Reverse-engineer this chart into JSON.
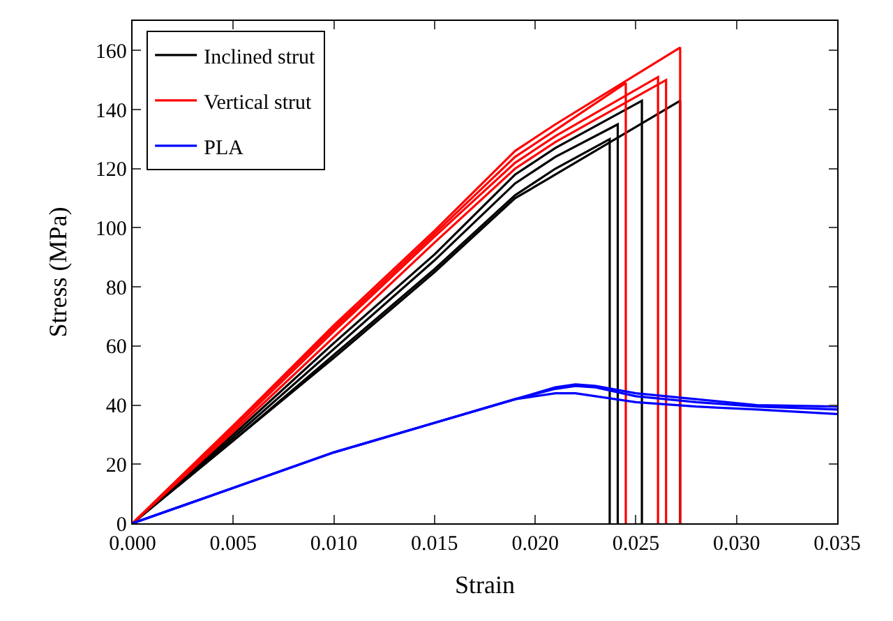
{
  "chart_data": {
    "type": "line",
    "xlabel": "Strain",
    "ylabel": "Stress (MPa)",
    "xlim": [
      0,
      0.035
    ],
    "ylim": [
      0,
      170
    ],
    "xticks": [
      {
        "value": 0,
        "label": "0.000"
      },
      {
        "value": 0.005,
        "label": "0.005"
      },
      {
        "value": 0.01,
        "label": "0.010"
      },
      {
        "value": 0.015,
        "label": "0.015"
      },
      {
        "value": 0.02,
        "label": "0.020"
      },
      {
        "value": 0.025,
        "label": "0.025"
      },
      {
        "value": 0.03,
        "label": "0.030"
      },
      {
        "value": 0.035,
        "label": "0.035"
      }
    ],
    "yticks": [
      0,
      20,
      40,
      60,
      80,
      100,
      120,
      140,
      160
    ],
    "legend": "top left",
    "marker": "none",
    "line_style": "solid",
    "series": [
      {
        "name": "Inclined strut",
        "color": "#000000",
        "x": [
          0,
          0.005,
          0.01,
          0.015,
          0.019,
          0.021,
          0.0237,
          0.0237
        ],
        "values": [
          0,
          28,
          57,
          86,
          111,
          120,
          130,
          0
        ]
      },
      {
        "color": "#000000",
        "x": [
          0,
          0.005,
          0.01,
          0.015,
          0.019,
          0.021,
          0.0241,
          0.0241
        ],
        "values": [
          0,
          29,
          59,
          89,
          115,
          124,
          135,
          0
        ]
      },
      {
        "color": "#000000",
        "x": [
          0,
          0.005,
          0.01,
          0.015,
          0.019,
          0.021,
          0.0253,
          0.0253
        ],
        "values": [
          0,
          30,
          61,
          91,
          118,
          127,
          143,
          0
        ]
      },
      {
        "color": "#000000",
        "x": [
          0,
          0.005,
          0.01,
          0.015,
          0.019,
          0.021,
          0.0272,
          0.0272
        ],
        "values": [
          0,
          28,
          56,
          85,
          110,
          118,
          143,
          0
        ]
      },
      {
        "name": "Vertical strut",
        "color": "#ff0000",
        "x": [
          0,
          0.005,
          0.01,
          0.015,
          0.019,
          0.021,
          0.0245,
          0.0245
        ],
        "values": [
          0,
          33,
          66,
          98,
          124,
          133,
          149,
          0
        ]
      },
      {
        "color": "#ff0000",
        "x": [
          0,
          0.005,
          0.01,
          0.015,
          0.019,
          0.021,
          0.0261,
          0.0261
        ],
        "values": [
          0,
          32,
          65,
          97,
          122,
          131,
          151,
          0
        ]
      },
      {
        "color": "#ff0000",
        "x": [
          0,
          0.005,
          0.01,
          0.015,
          0.019,
          0.021,
          0.0265,
          0.0265
        ],
        "values": [
          0,
          31,
          63,
          95,
          120,
          129,
          150,
          0
        ]
      },
      {
        "color": "#ff0000",
        "x": [
          0,
          0.005,
          0.01,
          0.015,
          0.019,
          0.021,
          0.0272,
          0.0272
        ],
        "values": [
          0,
          33,
          67,
          99,
          126,
          135,
          161,
          0
        ]
      },
      {
        "name": "PLA",
        "color": "#0000ff",
        "x": [
          0,
          0.005,
          0.01,
          0.015,
          0.019,
          0.021,
          0.022,
          0.023,
          0.025,
          0.028,
          0.031,
          0.035
        ],
        "values": [
          0,
          12,
          24,
          34,
          42,
          46,
          47,
          46.5,
          44,
          42,
          40,
          39.5
        ]
      },
      {
        "color": "#0000ff",
        "x": [
          0,
          0.005,
          0.01,
          0.015,
          0.019,
          0.021,
          0.022,
          0.023,
          0.025,
          0.028,
          0.031,
          0.035
        ],
        "values": [
          0,
          12,
          24,
          34,
          42,
          45.5,
          46.5,
          46,
          43,
          41,
          39.5,
          38.5
        ]
      },
      {
        "color": "#0000ff",
        "x": [
          0,
          0.005,
          0.01,
          0.015,
          0.019,
          0.021,
          0.022,
          0.023,
          0.025,
          0.028,
          0.031,
          0.035
        ],
        "values": [
          0,
          12,
          24,
          34,
          42,
          44,
          44,
          43,
          41,
          39.5,
          38.5,
          37
        ]
      }
    ]
  }
}
